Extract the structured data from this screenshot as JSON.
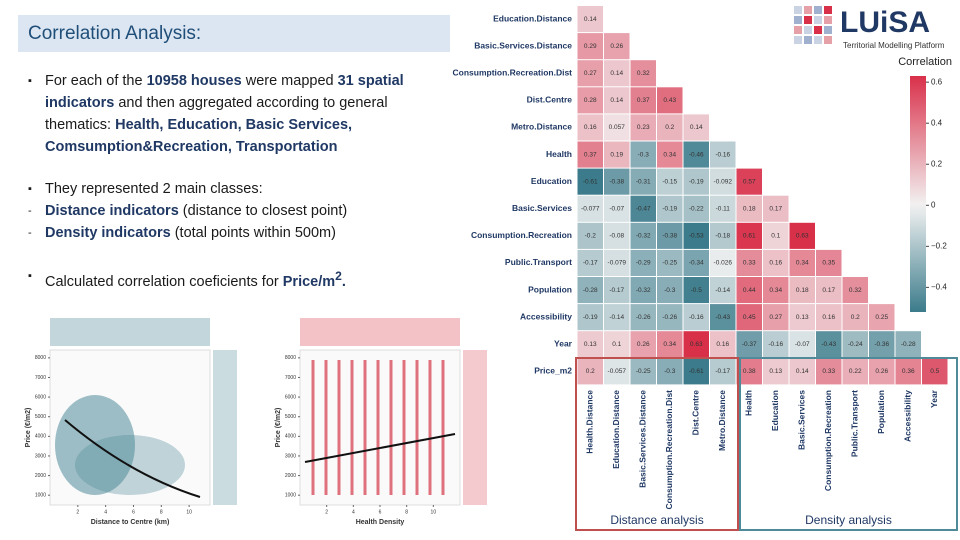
{
  "header": {
    "title": "Correlation Analysis:"
  },
  "logo": {
    "name": "LUiSA",
    "tagline": "Territorial Modelling Platform"
  },
  "bullets": [
    {
      "marker": "▪",
      "segments": [
        {
          "text": "For each of the "
        },
        {
          "text": "10958 houses",
          "bold": true
        },
        {
          "text": " were mapped "
        },
        {
          "text": "31 spatial indicators",
          "bold": true
        },
        {
          "text": " and then aggregated according to general thematics: "
        },
        {
          "text": "Health, Education, Basic Services, Comsumption&Recreation, Transportation",
          "bold": true
        }
      ]
    },
    {
      "marker": "▪",
      "segments": [
        {
          "text": "They represented 2 main classes:"
        }
      ]
    },
    {
      "marker": "-",
      "segments": [
        {
          "text": "Distance indicators",
          "bold": true
        },
        {
          "text": " (distance to closest point)"
        }
      ]
    },
    {
      "marker": "-",
      "segments": [
        {
          "text": "Density indicators",
          "bold": true
        },
        {
          "text": " (total points within 500m)"
        }
      ]
    },
    {
      "marker": "▪",
      "segments": [
        {
          "text": "Calculated correlation coeficients for "
        },
        {
          "text": "Price/m",
          "bold": true
        },
        {
          "text": "2",
          "bold": true,
          "sup": true
        },
        {
          "text": ".",
          "bold": true
        }
      ]
    }
  ],
  "chart_data": [
    {
      "type": "heatmap",
      "legend_title": "Correlation",
      "rows": [
        "Education.Distance",
        "Basic.Services.Distance",
        "Consumption.Recreation.Dist",
        "Dist.Centre",
        "Metro.Distance",
        "Health",
        "Education",
        "Basic.Services",
        "Consumption.Recreation",
        "Public.Transport",
        "Population",
        "Accessibility",
        "Year",
        "Price_m2"
      ],
      "columns": [
        "Health.Distance",
        "Education.Distance",
        "Basic.Services.Distance",
        "Consumption.Recreation.Dist",
        "Dist.Centre",
        "Metro.Distance",
        "Health",
        "Education",
        "Basic.Services",
        "Consumption.Recreation",
        "Public.Transport",
        "Population",
        "Accessibility",
        "Year"
      ],
      "values": [
        [
          0.14
        ],
        [
          0.29,
          0.26
        ],
        [
          0.27,
          0.14,
          0.32
        ],
        [
          0.28,
          0.14,
          0.37,
          0.43
        ],
        [
          0.16,
          0.057,
          0.23,
          0.2,
          0.14
        ],
        [
          0.37,
          0.19,
          -0.3,
          0.34,
          -0.46,
          -0.16
        ],
        [
          -0.61,
          -0.38,
          -0.31,
          -0.15,
          -0.19,
          -0.092,
          0.57
        ],
        [
          -0.077,
          -0.07,
          -0.47,
          -0.19,
          -0.22,
          -0.11,
          0.18,
          0.17
        ],
        [
          -0.2,
          -0.08,
          -0.32,
          -0.38,
          -0.53,
          -0.18,
          0.61,
          0.1,
          0.63
        ],
        [
          -0.17,
          -0.079,
          -0.29,
          -0.25,
          -0.34,
          -0.026,
          0.33,
          0.16,
          0.34,
          0.35
        ],
        [
          -0.28,
          -0.17,
          -0.32,
          -0.3,
          -0.5,
          -0.14,
          0.44,
          0.34,
          0.18,
          0.17,
          0.32
        ],
        [
          -0.19,
          -0.14,
          -0.26,
          -0.26,
          -0.16,
          -0.43,
          0.45,
          0.27,
          0.13,
          0.16,
          0.2,
          0.25
        ],
        [
          0.13,
          0.1,
          0.26,
          0.34,
          0.63,
          0.16,
          -0.37,
          -0.16,
          -0.07,
          -0.43,
          -0.24,
          -0.36,
          -0.28
        ],
        [
          0.2,
          -0.057,
          -0.25,
          -0.3,
          -0.61,
          -0.17,
          0.38,
          0.13,
          0.14,
          0.33,
          0.22,
          0.26,
          0.36,
          0.5
        ]
      ],
      "colors": [
        "#3b7b8b",
        "#f2f2f2",
        "#d9304a"
      ],
      "colorbar_lim": [
        -0.52,
        0.63
      ],
      "colorbar_ticks": [
        0.6,
        0.4,
        0.2,
        0.0,
        {
          "value": -0.2,
          "label": "−0.2"
        },
        {
          "value": -0.4,
          "label": "−0.4"
        }
      ],
      "annotations": [
        {
          "text": "Distance analysis",
          "color": "#c0504d"
        },
        {
          "text": "Density analysis",
          "color": "#4f8a99"
        }
      ]
    },
    {
      "type": "scatter",
      "xlabel": "Distance to Centre (km)",
      "ylabel": "Price (€/m2)",
      "color": "#4f8a99",
      "xlim": [
        0,
        11.5
      ],
      "ylim": [
        500,
        8400
      ],
      "xticks": [
        2,
        4,
        6,
        8,
        10
      ],
      "yticks": [
        1000,
        2000,
        3000,
        4000,
        5000,
        6000,
        7000,
        8000
      ]
    },
    {
      "type": "scatter",
      "xlabel": "Health Density",
      "ylabel": "Price (€/m2)",
      "color": "#d9505f",
      "xlim": [
        0,
        12
      ],
      "ylim": [
        500,
        8400
      ],
      "xticks": [
        2,
        4,
        6,
        8,
        10
      ],
      "yticks": [
        1000,
        2000,
        3000,
        4000,
        5000,
        6000,
        7000,
        8000
      ]
    }
  ]
}
